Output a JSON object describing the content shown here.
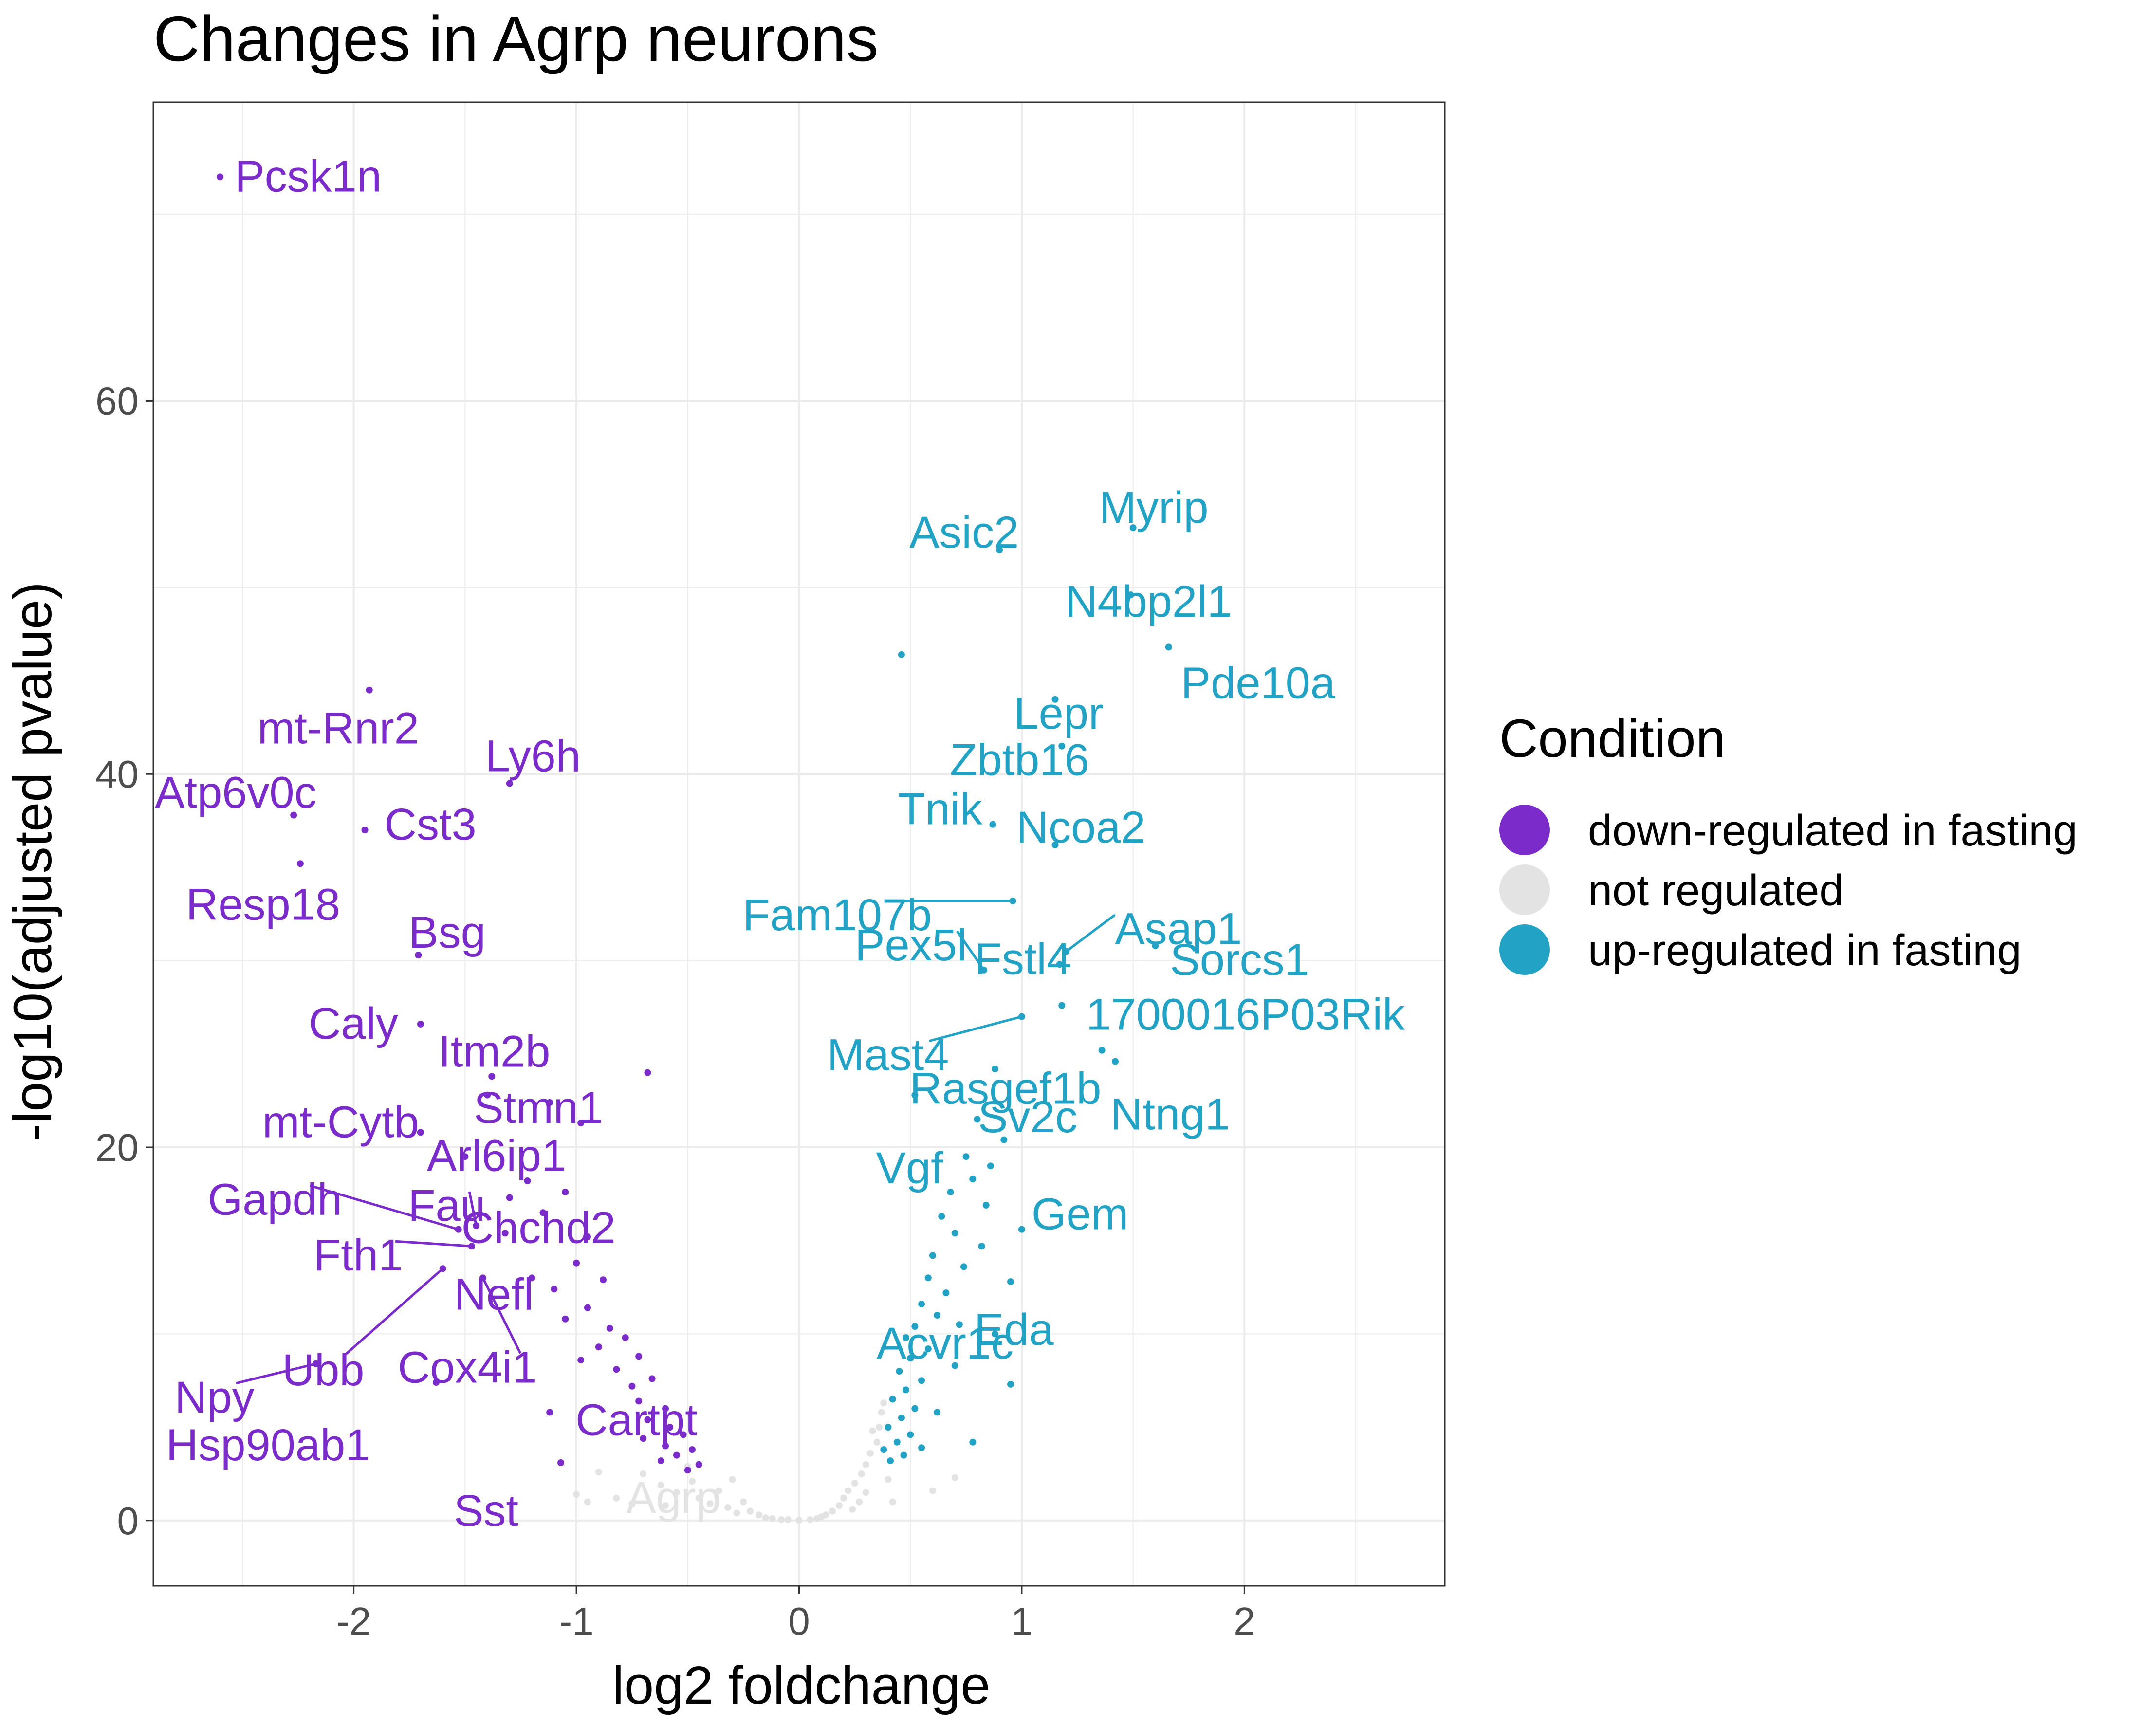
{
  "chart_data": {
    "type": "scatter",
    "title": "Changes in Agrp neurons",
    "xlabel": "log2 foldchange",
    "ylabel": "-log10(adjusted pvalue)",
    "xlim": [
      -2.9,
      2.9
    ],
    "ylim": [
      -3.5,
      76
    ],
    "x_ticks": [
      -2,
      -1,
      0,
      1,
      2
    ],
    "y_ticks": [
      0,
      20,
      40,
      60
    ],
    "grid": true,
    "legend": {
      "title": "Condition",
      "position": "right",
      "entries": [
        {
          "label": "down-regulated in fasting",
          "color": "#7B2BC9"
        },
        {
          "label": "not regulated",
          "color": "#E3E3E3"
        },
        {
          "label": "up-regulated in fasting",
          "color": "#22A2C4"
        }
      ]
    },
    "series": [
      {
        "name": "down-regulated in fasting",
        "color": "#7B2BC9",
        "points": [
          {
            "gene": "Pcsk1n",
            "x": -2.6,
            "y": 72.0
          },
          {
            "gene": "mt-Rnr2",
            "x": -1.93,
            "y": 44.5
          },
          {
            "gene": "Ly6h",
            "x": -1.3,
            "y": 39.5
          },
          {
            "gene": "Atp6v0c",
            "x": -2.27,
            "y": 37.8
          },
          {
            "gene": "Cst3",
            "x": -1.95,
            "y": 37.0
          },
          {
            "gene": "Resp18",
            "x": -2.24,
            "y": 35.2
          },
          {
            "gene": "Bsg",
            "x": -1.71,
            "y": 30.3
          },
          {
            "gene": "Caly",
            "x": -1.7,
            "y": 26.6
          },
          {
            "gene": "Itm2b",
            "x": -1.38,
            "y": 23.8
          },
          {
            "gene": "mt-Cytb",
            "x": -1.7,
            "y": 20.8
          },
          {
            "gene": "Stmn1",
            "x": -0.98,
            "y": 21.3
          },
          {
            "gene": "Arl6ip1",
            "x": -1.3,
            "y": 17.3
          },
          {
            "gene": "Gapdh",
            "x": -1.53,
            "y": 15.6
          },
          {
            "gene": "Fau",
            "x": -1.45,
            "y": 15.8
          },
          {
            "gene": "Chchd2",
            "x": -1.32,
            "y": 15.4
          },
          {
            "gene": "Fth1",
            "x": -1.47,
            "y": 14.7
          },
          {
            "gene": "Ubb",
            "x": -1.6,
            "y": 13.5
          },
          {
            "gene": "Nefl",
            "x": -1.2,
            "y": 13.0
          },
          {
            "gene": "Cox4i1",
            "x": -1.42,
            "y": 13.0
          },
          {
            "gene": "Npy",
            "x": -2.17,
            "y": 8.4
          },
          {
            "gene": "Hsp90ab1",
            "x": -1.63,
            "y": 7.4
          },
          {
            "gene": "Cartpt",
            "x": -0.72,
            "y": 6.4
          },
          {
            "gene": "Sst",
            "x": -1.07,
            "y": 3.1
          },
          {
            "x": -0.68,
            "y": 24.0
          },
          {
            "x": -1.12,
            "y": 22.4
          },
          {
            "x": -1.4,
            "y": 22.8
          },
          {
            "x": -1.5,
            "y": 19.5
          },
          {
            "x": -1.22,
            "y": 18.2
          },
          {
            "x": -1.05,
            "y": 17.6
          },
          {
            "x": -1.15,
            "y": 16.5
          },
          {
            "x": -0.95,
            "y": 15.2
          },
          {
            "x": -1.0,
            "y": 13.8
          },
          {
            "x": -1.1,
            "y": 12.4
          },
          {
            "x": -0.88,
            "y": 12.9
          },
          {
            "x": -0.95,
            "y": 11.4
          },
          {
            "x": -1.05,
            "y": 10.8
          },
          {
            "x": -0.85,
            "y": 10.3
          },
          {
            "x": -0.78,
            "y": 9.8
          },
          {
            "x": -0.9,
            "y": 9.3
          },
          {
            "x": -0.72,
            "y": 8.8
          },
          {
            "x": -0.98,
            "y": 8.6
          },
          {
            "x": -0.82,
            "y": 8.1
          },
          {
            "x": -0.66,
            "y": 7.6
          },
          {
            "x": -0.75,
            "y": 7.2
          },
          {
            "x": -1.12,
            "y": 5.8
          },
          {
            "x": -0.6,
            "y": 6.0
          },
          {
            "x": -0.68,
            "y": 5.4
          },
          {
            "x": -0.58,
            "y": 5.0
          },
          {
            "x": -0.52,
            "y": 4.6
          },
          {
            "x": -0.7,
            "y": 4.4
          },
          {
            "x": -0.6,
            "y": 4.0
          },
          {
            "x": -0.48,
            "y": 3.8
          },
          {
            "x": -0.55,
            "y": 3.5
          },
          {
            "x": -0.62,
            "y": 3.2
          },
          {
            "x": -0.45,
            "y": 3.0
          },
          {
            "x": -0.5,
            "y": 2.7
          }
        ]
      },
      {
        "name": "up-regulated in fasting",
        "color": "#22A2C4",
        "points": [
          {
            "gene": "Myrip",
            "x": 1.5,
            "y": 53.2
          },
          {
            "gene": "Asic2",
            "x": 0.9,
            "y": 52.0
          },
          {
            "gene": "N4bp2l1",
            "x": 1.49,
            "y": 49.6
          },
          {
            "gene": "Lepr",
            "x": 1.15,
            "y": 44.0
          },
          {
            "gene": "Pde10a",
            "x": 1.66,
            "y": 46.8
          },
          {
            "gene": "Zbtb16",
            "x": 1.18,
            "y": 41.5
          },
          {
            "gene": "Tnik",
            "x": 0.87,
            "y": 37.3
          },
          {
            "gene": "Ncoa2",
            "x": 1.15,
            "y": 36.2
          },
          {
            "gene": "Fam107b",
            "x": 0.96,
            "y": 33.2
          },
          {
            "gene": "Asap1",
            "x": 1.2,
            "y": 30.5
          },
          {
            "gene": "Fstl4",
            "x": 1.17,
            "y": 29.8
          },
          {
            "gene": "Sorcs1",
            "x": 1.6,
            "y": 30.8
          },
          {
            "gene": "Pex5l",
            "x": 0.83,
            "y": 29.5
          },
          {
            "gene": "1700016P03Rik",
            "x": 1.18,
            "y": 27.6
          },
          {
            "gene": "Mast4",
            "x": 1.0,
            "y": 27.0
          },
          {
            "gene": "Rasgef1b",
            "x": 1.36,
            "y": 25.2
          },
          {
            "gene": "Sv2c",
            "x": 0.88,
            "y": 24.2
          },
          {
            "gene": "Ntng1",
            "x": 1.42,
            "y": 24.6
          },
          {
            "gene": "Vgf",
            "x": 0.75,
            "y": 19.5
          },
          {
            "gene": "Gem",
            "x": 1.0,
            "y": 15.6
          },
          {
            "gene": "Eda",
            "x": 0.95,
            "y": 12.8
          },
          {
            "gene": "Acvr1c",
            "x": 0.72,
            "y": 10.5
          },
          {
            "x": 0.46,
            "y": 46.4
          },
          {
            "x": 0.52,
            "y": 22.8
          },
          {
            "x": 0.8,
            "y": 21.5
          },
          {
            "x": 0.92,
            "y": 20.4
          },
          {
            "x": 0.86,
            "y": 19.0
          },
          {
            "x": 0.78,
            "y": 18.3
          },
          {
            "x": 0.68,
            "y": 17.6
          },
          {
            "x": 0.84,
            "y": 16.9
          },
          {
            "x": 0.64,
            "y": 16.3
          },
          {
            "x": 0.7,
            "y": 15.4
          },
          {
            "x": 0.82,
            "y": 14.7
          },
          {
            "x": 0.6,
            "y": 14.2
          },
          {
            "x": 0.74,
            "y": 13.6
          },
          {
            "x": 0.58,
            "y": 13.0
          },
          {
            "x": 0.66,
            "y": 12.2
          },
          {
            "x": 0.55,
            "y": 11.6
          },
          {
            "x": 0.62,
            "y": 11.0
          },
          {
            "x": 0.52,
            "y": 10.4
          },
          {
            "x": 0.48,
            "y": 9.8
          },
          {
            "x": 0.58,
            "y": 9.2
          },
          {
            "x": 0.5,
            "y": 8.7
          },
          {
            "x": 0.95,
            "y": 7.3
          },
          {
            "x": 0.45,
            "y": 8.0
          },
          {
            "x": 0.55,
            "y": 7.5
          },
          {
            "x": 0.48,
            "y": 7.0
          },
          {
            "x": 0.42,
            "y": 6.5
          },
          {
            "x": 0.52,
            "y": 6.0
          },
          {
            "x": 0.46,
            "y": 5.5
          },
          {
            "x": 0.4,
            "y": 5.0
          },
          {
            "x": 0.5,
            "y": 4.6
          },
          {
            "x": 0.44,
            "y": 4.2
          },
          {
            "x": 0.38,
            "y": 3.8
          },
          {
            "x": 0.47,
            "y": 3.5
          },
          {
            "x": 0.41,
            "y": 3.2
          },
          {
            "x": 0.55,
            "y": 3.9
          },
          {
            "x": 0.78,
            "y": 4.2
          },
          {
            "x": 0.62,
            "y": 5.8
          },
          {
            "x": 0.7,
            "y": 8.3
          },
          {
            "x": 0.88,
            "y": 10.0
          }
        ]
      },
      {
        "name": "not regulated",
        "color": "#E3E3E3",
        "points": [
          {
            "gene": "Agrp",
            "x": -0.82,
            "y": 1.2
          },
          {
            "x": -1.0,
            "y": 1.4
          },
          {
            "x": -0.95,
            "y": 1.0
          },
          {
            "x": -0.9,
            "y": 2.6
          },
          {
            "x": -0.7,
            "y": 2.5
          },
          {
            "x": -0.62,
            "y": 1.9
          },
          {
            "x": -0.55,
            "y": 1.5
          },
          {
            "x": -0.48,
            "y": 2.1
          },
          {
            "x": -0.45,
            "y": 1.2
          },
          {
            "x": -0.4,
            "y": 0.9
          },
          {
            "x": -0.36,
            "y": 1.6
          },
          {
            "x": -0.32,
            "y": 0.7
          },
          {
            "x": -0.28,
            "y": 0.4
          },
          {
            "x": -0.25,
            "y": 1.0
          },
          {
            "x": -0.22,
            "y": 0.5
          },
          {
            "x": -0.18,
            "y": 0.3
          },
          {
            "x": -0.15,
            "y": 0.15
          },
          {
            "x": -0.12,
            "y": 0.1
          },
          {
            "x": -0.08,
            "y": 0.05
          },
          {
            "x": -0.05,
            "y": 0.05
          },
          {
            "x": 0.0,
            "y": 0.02
          },
          {
            "x": 0.05,
            "y": 0.05
          },
          {
            "x": 0.08,
            "y": 0.1
          },
          {
            "x": 0.12,
            "y": 0.3
          },
          {
            "x": 0.15,
            "y": 0.5
          },
          {
            "x": 0.18,
            "y": 0.8
          },
          {
            "x": 0.2,
            "y": 1.2
          },
          {
            "x": 0.22,
            "y": 1.6
          },
          {
            "x": 0.25,
            "y": 2.0
          },
          {
            "x": 0.28,
            "y": 2.5
          },
          {
            "x": 0.3,
            "y": 3.0
          },
          {
            "x": 0.32,
            "y": 3.6
          },
          {
            "x": 0.35,
            "y": 4.2
          },
          {
            "x": 0.36,
            "y": 5.0
          },
          {
            "x": 0.37,
            "y": 5.8
          },
          {
            "x": 0.38,
            "y": 6.3
          },
          {
            "x": 0.33,
            "y": 4.8
          },
          {
            "x": 0.27,
            "y": 1.0
          },
          {
            "x": 0.24,
            "y": 0.6
          },
          {
            "x": 0.3,
            "y": 1.5
          },
          {
            "x": 0.4,
            "y": 2.2
          },
          {
            "x": 0.42,
            "y": 1.0
          },
          {
            "x": 0.6,
            "y": 1.6
          },
          {
            "x": 0.7,
            "y": 2.3
          },
          {
            "x": -0.6,
            "y": 0.8
          },
          {
            "x": -0.75,
            "y": 0.9
          },
          {
            "x": -0.3,
            "y": 2.2
          },
          {
            "x": -0.5,
            "y": 2.9
          },
          {
            "x": 0.1,
            "y": 0.2
          }
        ]
      }
    ]
  }
}
